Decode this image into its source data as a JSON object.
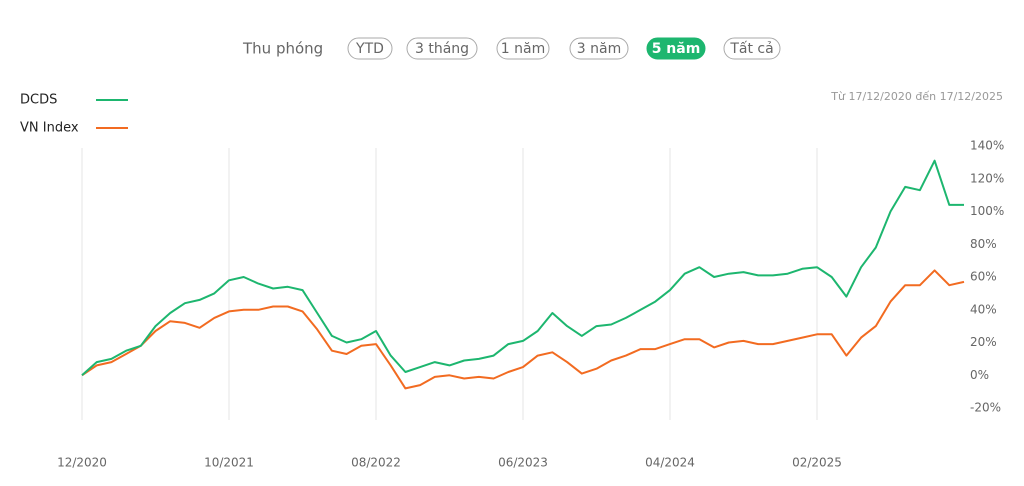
{
  "controls": {
    "label": "Thu phóng",
    "buttons": [
      "YTD",
      "3 tháng",
      "1 năm",
      "3 năm",
      "5 năm",
      "Tất cả"
    ],
    "active": 4
  },
  "chart_data": {
    "type": "line",
    "subtitle": "Từ 17/12/2020 đến 17/12/2025",
    "categories": [
      "12/2020",
      null,
      null,
      null,
      null,
      null,
      null,
      null,
      null,
      null,
      "10/2021",
      null,
      null,
      null,
      null,
      null,
      null,
      null,
      null,
      null,
      "08/2022",
      null,
      null,
      null,
      null,
      null,
      null,
      null,
      null,
      null,
      "06/2023",
      null,
      null,
      null,
      null,
      null,
      null,
      null,
      null,
      null,
      "04/2024",
      null,
      null,
      null,
      null,
      null,
      null,
      null,
      null,
      null,
      "02/2025",
      null,
      null,
      null,
      null,
      null,
      null,
      null,
      null,
      null,
      null
    ],
    "series": [
      {
        "name": "DCDS",
        "color": "#1db66f",
        "values": [
          0,
          8,
          10,
          15,
          18,
          30,
          38,
          44,
          46,
          50,
          58,
          60,
          56,
          53,
          54,
          52,
          38,
          24,
          20,
          22,
          27,
          12,
          2,
          5,
          8,
          6,
          9,
          10,
          12,
          19,
          21,
          27,
          38,
          30,
          24,
          30,
          31,
          35,
          40,
          45,
          52,
          62,
          66,
          60,
          62,
          63,
          61,
          61,
          62,
          65,
          66,
          60,
          48,
          66,
          78,
          100,
          115,
          113,
          131,
          104,
          104
        ]
      },
      {
        "name": "VN Index",
        "color": "#f26b21",
        "values": [
          0,
          6,
          8,
          13,
          18,
          27,
          33,
          32,
          29,
          35,
          39,
          40,
          40,
          42,
          42,
          39,
          28,
          15,
          13,
          18,
          19,
          6,
          -8,
          -6,
          -1,
          0,
          -2,
          -1,
          -2,
          2,
          5,
          12,
          14,
          8,
          1,
          4,
          9,
          12,
          16,
          16,
          19,
          22,
          22,
          17,
          20,
          21,
          19,
          19,
          21,
          23,
          25,
          25,
          12,
          23,
          30,
          45,
          55,
          55,
          64,
          55,
          57
        ]
      }
    ],
    "ylim": [
      -20,
      140
    ],
    "yticks": [
      {
        "value": -20,
        "label": "-20%"
      },
      {
        "value": 0,
        "label": "0%"
      },
      {
        "value": 20,
        "label": "20%"
      },
      {
        "value": 40,
        "label": "40%"
      },
      {
        "value": 60,
        "label": "60%"
      },
      {
        "value": 80,
        "label": "80%"
      },
      {
        "value": 100,
        "label": "100%"
      },
      {
        "value": 120,
        "label": "120%"
      },
      {
        "value": 140,
        "label": "140%"
      }
    ],
    "grid": true
  }
}
